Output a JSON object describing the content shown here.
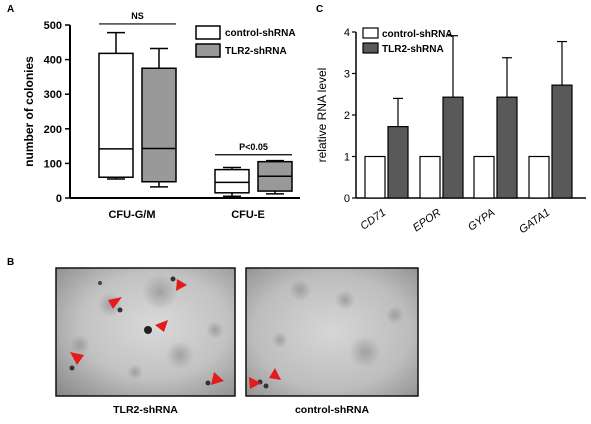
{
  "panels": {
    "a": "A",
    "b": "B",
    "c": "C"
  },
  "chart_data": [
    {
      "type": "box",
      "panel": "A",
      "ylabel": "number of colonies",
      "xlabel": "",
      "ylim": [
        0,
        500
      ],
      "yticks": [
        0,
        100,
        200,
        300,
        400,
        500
      ],
      "categories": [
        "CFU-G/M",
        "CFU-E"
      ],
      "legend": {
        "placement": "top-right",
        "entries": [
          "control-shRNA",
          "TLR2-shRNA"
        ]
      },
      "series": [
        {
          "name": "control-shRNA",
          "color": "#ffffff",
          "boxes": [
            {
              "min": 55,
              "q1": 60,
              "median": 142,
              "q3": 418,
              "max": 478
            },
            {
              "min": 5,
              "q1": 15,
              "median": 45,
              "q3": 82,
              "max": 88
            }
          ]
        },
        {
          "name": "TLR2-shRNA",
          "color": "#999999",
          "boxes": [
            {
              "min": 32,
              "q1": 47,
              "median": 143,
              "q3": 375,
              "max": 432
            },
            {
              "min": 12,
              "q1": 20,
              "median": 63,
              "q3": 105,
              "max": 108
            }
          ]
        }
      ],
      "annotations": [
        {
          "text": "NS",
          "category": "CFU-G/M"
        },
        {
          "text": "P<0.05",
          "category": "CFU-E"
        }
      ]
    },
    {
      "type": "bar",
      "panel": "C",
      "ylabel": "relative RNA level",
      "xlabel": "",
      "ylim": [
        0,
        4
      ],
      "yticks": [
        0,
        1,
        2,
        3,
        4
      ],
      "categories": [
        "CD71",
        "EPOR",
        "GYPA",
        "GATA1"
      ],
      "legend": {
        "placement": "top-left",
        "entries": [
          "control-shRNA",
          "TLR2-shRNA"
        ]
      },
      "series": [
        {
          "name": "control-shRNA",
          "color": "#ffffff",
          "values": [
            1,
            1,
            1,
            1
          ],
          "errors": [
            0,
            0,
            0,
            0
          ]
        },
        {
          "name": "TLR2-shRNA",
          "color": "#595959",
          "values": [
            1.72,
            2.43,
            2.43,
            2.72
          ],
          "errors": [
            0.68,
            1.48,
            0.95,
            1.05
          ]
        }
      ]
    }
  ],
  "micrographs": {
    "left_caption": "TLR2-shRNA",
    "right_caption": "control-shRNA"
  }
}
